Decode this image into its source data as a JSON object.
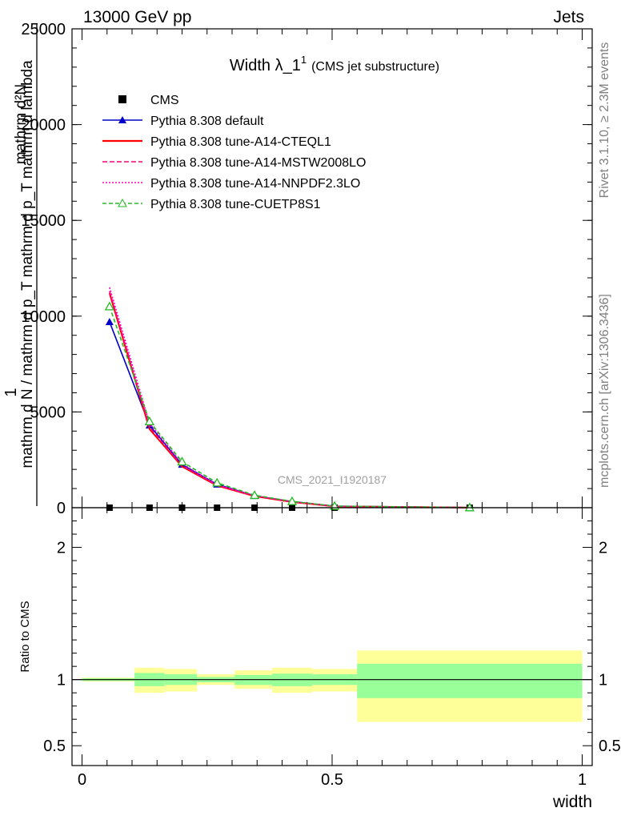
{
  "header": {
    "left": "13000 GeV pp",
    "right": "Jets"
  },
  "side": {
    "rivet": "Rivet 3.1.10, ≥ 2.3M events",
    "mcplots": "mcplots.cern.ch [arXiv:1306.3436]"
  },
  "watermark": "CMS_2021_I1920187",
  "colors": {
    "cms": "#000000",
    "default": "#0000cc",
    "cteql1": "#ff0000",
    "mstw": "#ff0077",
    "nnpdf": "#ff00cc",
    "cuetp8s1": "#22bb22",
    "band_outer": "#ffff99",
    "band_inner": "#99ff99"
  },
  "chart_data": [
    {
      "type": "line",
      "title": "Width λ_1",
      "title_sup": "1",
      "subtitle": "(CMS jet substructure)",
      "ylabel_top": "1",
      "ylabel_num": "mathrm d²N",
      "ylabel_den": "mathrm d N / mathrm d p_T mathrm d p_T mathrm d lambda",
      "xlim": [
        -0.02,
        1.02
      ],
      "ylim": [
        0,
        25000
      ],
      "yticks": [
        0,
        5000,
        10000,
        15000,
        20000,
        25000
      ],
      "ytick_labels": [
        "0",
        "5000",
        "10000",
        "15000",
        "20000",
        "25000"
      ],
      "x": [
        0.055,
        0.135,
        0.2,
        0.27,
        0.345,
        0.42,
        0.505,
        0.775
      ],
      "series": [
        {
          "name": "CMS",
          "key": "cms",
          "marker": "square",
          "values": [
            0,
            0,
            0,
            0,
            0,
            0,
            0,
            0
          ]
        },
        {
          "name": "Pythia 8.308 default",
          "key": "default",
          "marker": "triangle",
          "dash": "",
          "values": [
            9700,
            4300,
            2250,
            1220,
            620,
            320,
            80,
            8
          ]
        },
        {
          "name": "Pythia 8.308 tune-A14-CTEQL1",
          "key": "cteql1",
          "marker": "none",
          "dash": "",
          "values": [
            11200,
            4100,
            2150,
            1150,
            600,
            300,
            70,
            6
          ]
        },
        {
          "name": "Pythia 8.308 tune-A14-MSTW2008LO",
          "key": "mstw",
          "marker": "none",
          "dash": "6,3",
          "values": [
            11300,
            4200,
            2180,
            1170,
            610,
            310,
            72,
            6
          ]
        },
        {
          "name": "Pythia 8.308 tune-A14-NNPDF2.3LO",
          "key": "nnpdf",
          "marker": "none",
          "dash": "2,2",
          "values": [
            11500,
            4400,
            2300,
            1200,
            630,
            320,
            75,
            7
          ]
        },
        {
          "name": "Pythia 8.308 tune-CUETP8S1",
          "key": "cuetp8s1",
          "marker": "open-triangle",
          "dash": "5,3",
          "values": [
            10500,
            4500,
            2400,
            1300,
            650,
            330,
            85,
            8
          ]
        }
      ]
    },
    {
      "type": "area",
      "ylabel": "Ratio to CMS",
      "xlabel": "width",
      "xlim": [
        -0.02,
        1.02
      ],
      "ylim": [
        0.35,
        2.3
      ],
      "yticks": [
        0.5,
        1,
        2
      ],
      "ytick_labels": [
        "0.5",
        "1",
        "2"
      ],
      "xticks": [
        0,
        0.5,
        1
      ],
      "xtick_labels": [
        "0",
        "0.5",
        "1"
      ],
      "bands": [
        {
          "x0": 0.0,
          "x1": 0.105,
          "inner": [
            0.99,
            1.01
          ],
          "outer": [
            0.985,
            1.015
          ]
        },
        {
          "x0": 0.105,
          "x1": 0.165,
          "inner": [
            0.95,
            1.05
          ],
          "outer": [
            0.9,
            1.09
          ]
        },
        {
          "x0": 0.165,
          "x1": 0.23,
          "inner": [
            0.96,
            1.04
          ],
          "outer": [
            0.91,
            1.08
          ]
        },
        {
          "x0": 0.23,
          "x1": 0.305,
          "inner": [
            0.98,
            1.02
          ],
          "outer": [
            0.96,
            1.04
          ]
        },
        {
          "x0": 0.305,
          "x1": 0.38,
          "inner": [
            0.96,
            1.035
          ],
          "outer": [
            0.93,
            1.07
          ]
        },
        {
          "x0": 0.38,
          "x1": 0.46,
          "inner": [
            0.95,
            1.045
          ],
          "outer": [
            0.9,
            1.09
          ]
        },
        {
          "x0": 0.46,
          "x1": 0.55,
          "inner": [
            0.96,
            1.04
          ],
          "outer": [
            0.91,
            1.08
          ]
        },
        {
          "x0": 0.55,
          "x1": 1.0,
          "inner": [
            0.86,
            1.12
          ],
          "outer": [
            0.68,
            1.22
          ]
        }
      ]
    }
  ]
}
